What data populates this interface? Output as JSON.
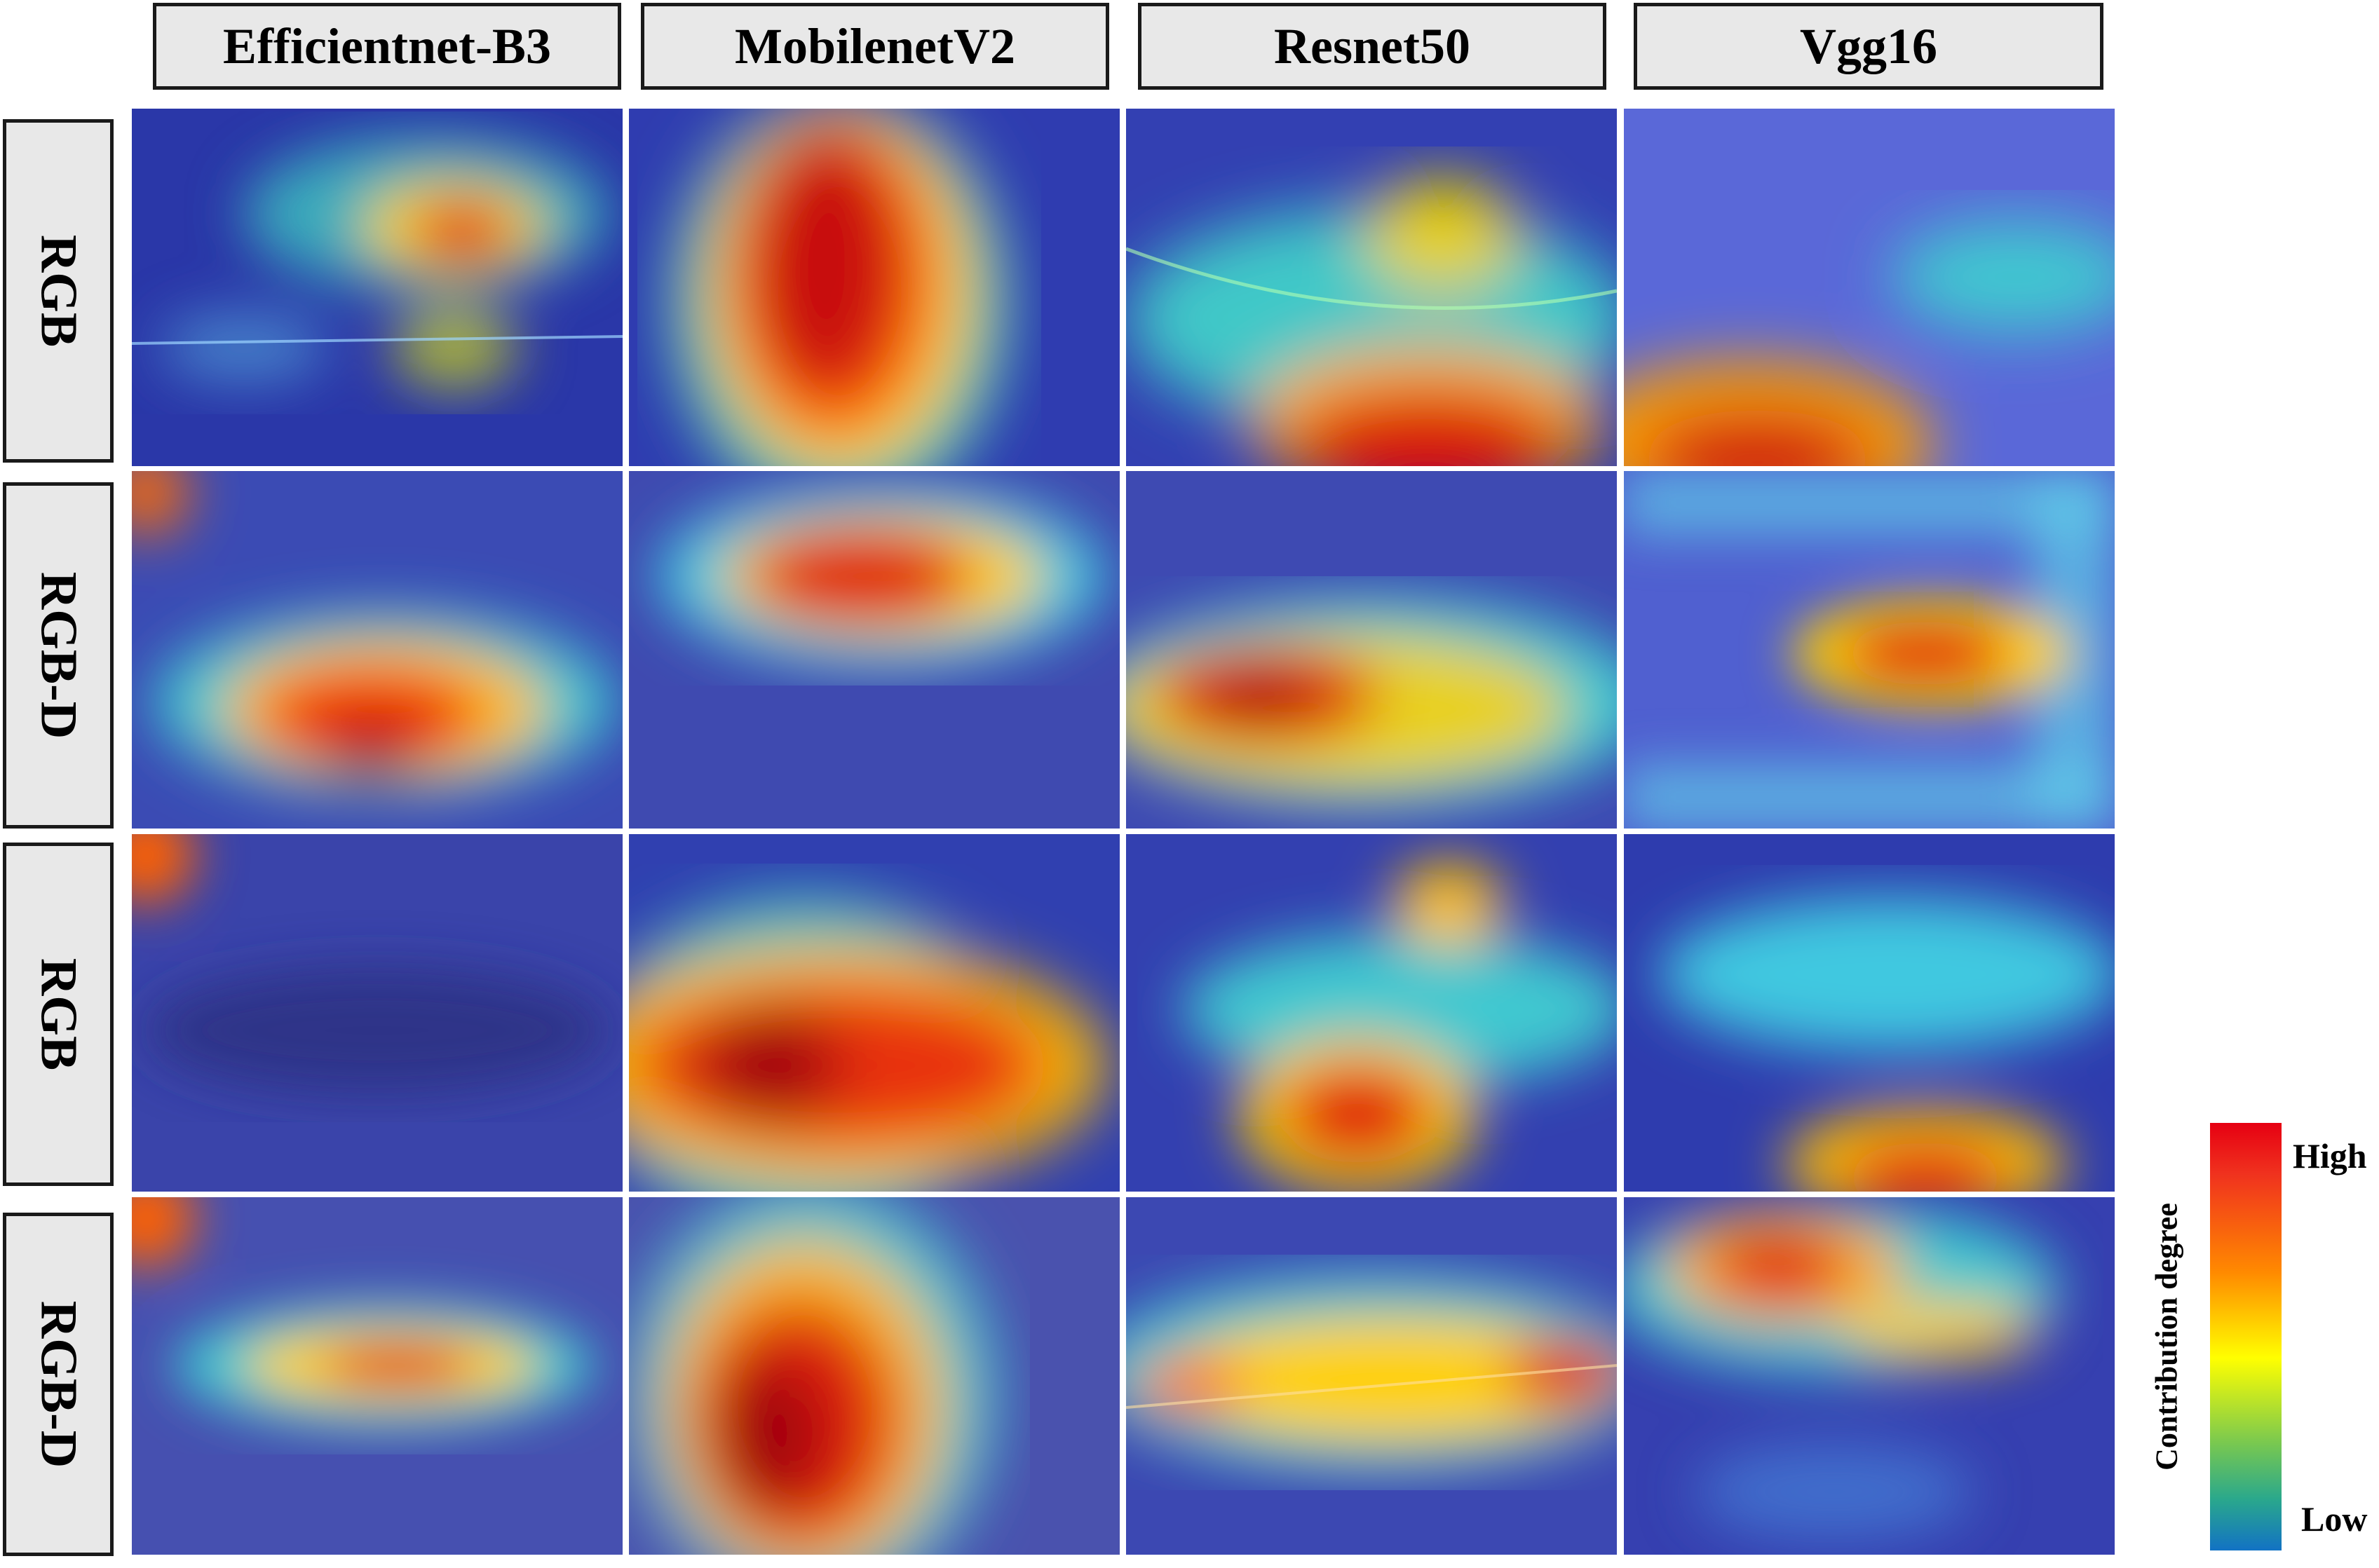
{
  "columns": [
    "Efficientnet-B3",
    "MobilenetV2",
    "Resnet50",
    "Vgg16"
  ],
  "rows": [
    "RGB",
    "RGB-D",
    "RGB",
    "RGB-D"
  ],
  "legend": {
    "title": "Contribution degree",
    "high": "High",
    "low": "Low",
    "colors": [
      "#e60012",
      "#ff8a00",
      "#ffff00",
      "#78c850",
      "#1272c4"
    ]
  },
  "cells": [
    {
      "row": 1,
      "col": 1,
      "description": "grad-cam-heatmap"
    },
    {
      "row": 1,
      "col": 2,
      "description": "grad-cam-heatmap"
    },
    {
      "row": 1,
      "col": 3,
      "description": "grad-cam-heatmap"
    },
    {
      "row": 1,
      "col": 4,
      "description": "grad-cam-heatmap"
    },
    {
      "row": 2,
      "col": 1,
      "description": "grad-cam-heatmap"
    },
    {
      "row": 2,
      "col": 2,
      "description": "grad-cam-heatmap"
    },
    {
      "row": 2,
      "col": 3,
      "description": "grad-cam-heatmap"
    },
    {
      "row": 2,
      "col": 4,
      "description": "grad-cam-heatmap"
    },
    {
      "row": 3,
      "col": 1,
      "description": "grad-cam-heatmap"
    },
    {
      "row": 3,
      "col": 2,
      "description": "grad-cam-heatmap"
    },
    {
      "row": 3,
      "col": 3,
      "description": "grad-cam-heatmap"
    },
    {
      "row": 3,
      "col": 4,
      "description": "grad-cam-heatmap"
    },
    {
      "row": 4,
      "col": 1,
      "description": "grad-cam-heatmap"
    },
    {
      "row": 4,
      "col": 2,
      "description": "grad-cam-heatmap"
    },
    {
      "row": 4,
      "col": 3,
      "description": "grad-cam-heatmap"
    },
    {
      "row": 4,
      "col": 4,
      "description": "grad-cam-heatmap"
    }
  ]
}
